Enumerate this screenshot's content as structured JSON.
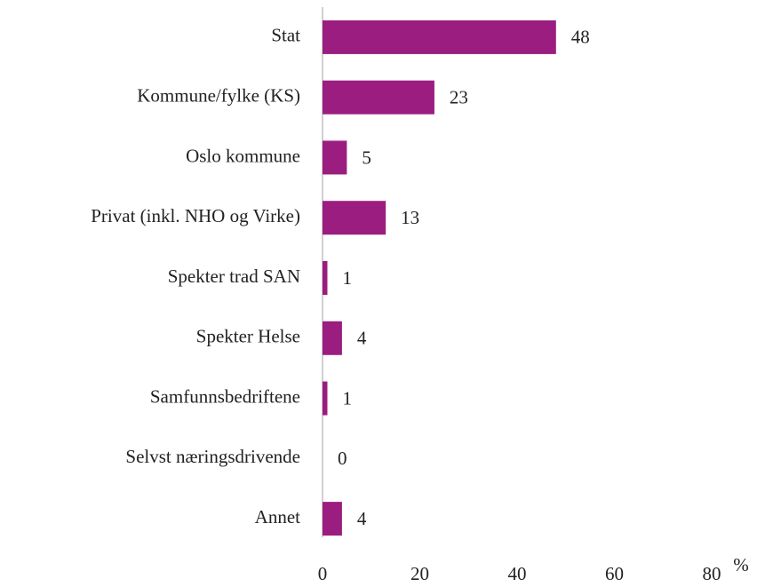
{
  "chart_data": {
    "type": "barh",
    "categories": [
      "Stat",
      "Kommune/fylke (KS)",
      "Oslo kommune",
      "Privat (inkl. NHO og Virke)",
      "Spekter trad SAN",
      "Spekter Helse",
      "Samfunnsbedriftene",
      "Selvst næringsdrivende",
      "Annet"
    ],
    "values": [
      48,
      23,
      5,
      13,
      1,
      4,
      1,
      0,
      4
    ],
    "color": "#9b1d7f",
    "xlim": [
      0,
      80
    ],
    "xticks": [
      0,
      20,
      40,
      60,
      80
    ],
    "xlabel": "%"
  }
}
